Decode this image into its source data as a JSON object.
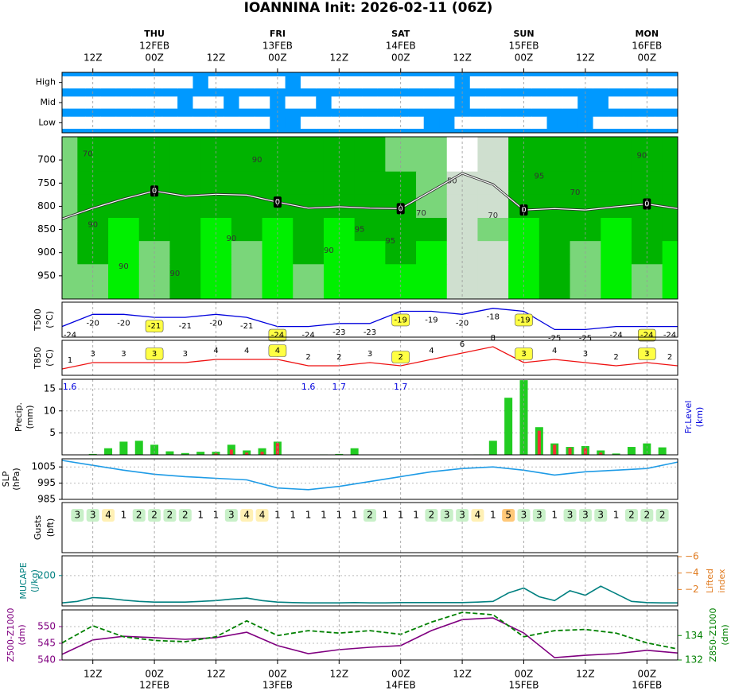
{
  "title": "IOANNINA Init: 2026-02-11 (06Z)",
  "xlim": [
    0,
    120
  ],
  "xticks": [
    {
      "value": 6,
      "label": "12Z"
    },
    {
      "value": 18,
      "label": "00Z",
      "day": "THU",
      "date": "12FEB"
    },
    {
      "value": 30,
      "label": "12Z"
    },
    {
      "value": 42,
      "label": "00Z",
      "day": "FRI",
      "date": "13FEB"
    },
    {
      "value": 54,
      "label": "12Z"
    },
    {
      "value": 66,
      "label": "00Z",
      "day": "SAT",
      "date": "14FEB"
    },
    {
      "value": 78,
      "label": "12Z"
    },
    {
      "value": 90,
      "label": "00Z",
      "day": "SUN",
      "date": "15FEB"
    },
    {
      "value": 102,
      "label": "12Z"
    },
    {
      "value": 114,
      "label": "00Z",
      "day": "MON",
      "date": "16FEB"
    }
  ],
  "chart_data": [
    {
      "type": "cloud",
      "categories": [
        "High",
        "Mid",
        "Low"
      ],
      "color": "#0099ff",
      "cloud_color": "#ffffff",
      "x": [
        0,
        3,
        6,
        9,
        12,
        15,
        18,
        21,
        24,
        27,
        30,
        33,
        36,
        39,
        42,
        45,
        48,
        51,
        54,
        57,
        60,
        63,
        66,
        69,
        72,
        75,
        78,
        81,
        84,
        87,
        90,
        93,
        96,
        99,
        102,
        105,
        108,
        111,
        114,
        117,
        120
      ],
      "cover": [
        [
          1,
          1,
          1,
          1,
          1,
          1,
          1,
          1,
          1,
          0,
          1,
          1,
          1,
          1,
          1,
          0,
          1,
          1,
          1,
          1,
          1,
          1,
          1,
          1,
          1,
          1,
          0,
          1,
          1,
          1,
          1,
          1,
          1,
          1,
          1,
          1,
          1,
          1,
          1,
          1,
          1
        ],
        [
          1,
          1,
          1,
          1,
          1,
          1,
          1,
          1,
          0,
          1,
          1,
          0,
          1,
          1,
          0,
          1,
          1,
          0,
          1,
          1,
          1,
          1,
          1,
          1,
          1,
          1,
          0,
          1,
          1,
          1,
          1,
          1,
          1,
          1,
          0,
          0,
          1,
          1,
          1,
          1,
          1
        ],
        [
          1,
          1,
          1,
          1,
          1,
          1,
          1,
          1,
          1,
          1,
          1,
          1,
          1,
          1,
          0,
          0,
          1,
          1,
          1,
          1,
          1,
          1,
          1,
          1,
          0,
          0,
          1,
          1,
          1,
          1,
          1,
          1,
          0,
          0,
          0,
          1,
          1,
          1,
          1,
          1,
          1
        ]
      ]
    },
    {
      "type": "cross_section",
      "ylim": [
        1000,
        650
      ],
      "yticks": [
        700,
        750,
        800,
        850,
        900,
        950
      ],
      "levels": [
        700,
        750,
        800,
        850,
        900,
        950
      ],
      "x": [
        0,
        6,
        12,
        18,
        24,
        30,
        36,
        42,
        48,
        54,
        60,
        66,
        72,
        78,
        84,
        90,
        96,
        102,
        108,
        114,
        120
      ],
      "rh": [
        [
          80,
          92,
          92,
          93,
          92,
          92,
          92,
          92,
          93,
          92,
          92,
          88,
          70,
          45,
          60,
          92,
          92,
          93,
          92,
          92,
          92
        ],
        [
          80,
          92,
          93,
          93,
          92,
          93,
          92,
          93,
          93,
          92,
          92,
          90,
          75,
          55,
          60,
          93,
          92,
          92,
          92,
          93,
          92
        ],
        [
          85,
          92,
          93,
          94,
          92,
          92,
          93,
          94,
          93,
          92,
          94,
          92,
          80,
          60,
          65,
          94,
          93,
          92,
          93,
          94,
          93
        ],
        [
          88,
          92,
          96,
          94,
          93,
          96,
          94,
          96,
          93,
          96,
          93,
          94,
          90,
          65,
          70,
          96,
          94,
          93,
          96,
          92,
          93
        ],
        [
          88,
          90,
          96,
          85,
          92,
          96,
          85,
          97,
          93,
          96,
          97,
          93,
          96,
          60,
          65,
          96,
          92,
          85,
          96,
          90,
          96
        ],
        [
          88,
          85,
          96,
          85,
          90,
          97,
          85,
          96,
          85,
          96,
          97,
          96,
          96,
          60,
          65,
          96,
          90,
          85,
          97,
          88,
          96
        ]
      ],
      "rh_bounds": [
        50,
        70,
        90,
        95
      ],
      "rh_colors": [
        "#ffffff",
        "#cfdfcf",
        "#7ad67a",
        "#00b300",
        "#00f000"
      ],
      "freezing_level": {
        "values": [
          827,
          804,
          784,
          767,
          778,
          774,
          776,
          791,
          804,
          801,
          804,
          805,
          767,
          729,
          753,
          808,
          805,
          808,
          801,
          795,
          805
        ],
        "label": "0",
        "color": "#ffffff"
      },
      "contour_labels": [
        {
          "x": 5,
          "p": 687,
          "value": 70
        },
        {
          "x": 6,
          "p": 840,
          "value": 90
        },
        {
          "x": 12,
          "p": 930,
          "value": 90
        },
        {
          "x": 22,
          "p": 945,
          "value": 90
        },
        {
          "x": 33,
          "p": 870,
          "value": 90
        },
        {
          "x": 38,
          "p": 700,
          "value": 90
        },
        {
          "x": 52,
          "p": 895,
          "value": 90
        },
        {
          "x": 58,
          "p": 850,
          "value": 95
        },
        {
          "x": 64,
          "p": 875,
          "value": 95
        },
        {
          "x": 70,
          "p": 815,
          "value": 70
        },
        {
          "x": 76,
          "p": 745,
          "value": 50
        },
        {
          "x": 84,
          "p": 820,
          "value": 70
        },
        {
          "x": 93,
          "p": 735,
          "value": 95
        },
        {
          "x": 100,
          "p": 770,
          "value": 70
        },
        {
          "x": 113,
          "p": 690,
          "value": 90
        }
      ]
    },
    {
      "type": "labeled_line",
      "ylabel": [
        "T500",
        "(°C)"
      ],
      "ylim": [
        -27.5,
        -16
      ],
      "color": "#0000dd",
      "box_color": "#ffff44",
      "x": [
        0,
        6,
        12,
        18,
        24,
        30,
        36,
        42,
        48,
        54,
        60,
        66,
        72,
        78,
        84,
        90,
        96,
        102,
        108,
        114,
        120
      ],
      "values": [
        -24,
        -20,
        -20,
        -21,
        -21,
        -20,
        -21,
        -24,
        -24,
        -23,
        -23,
        -19,
        -19,
        -20,
        -18,
        -19,
        -25,
        -25,
        -24,
        -24,
        -24
      ]
    },
    {
      "type": "labeled_line",
      "ylabel": [
        "T850",
        "(°C)"
      ],
      "ylim": [
        -1,
        10
      ],
      "color": "#ee1111",
      "box_color": "#ffff44",
      "x": [
        0,
        6,
        12,
        18,
        24,
        30,
        36,
        42,
        48,
        54,
        60,
        66,
        72,
        78,
        84,
        90,
        96,
        102,
        108,
        114,
        120
      ],
      "values": [
        1,
        3,
        3,
        3,
        3,
        4,
        4,
        4,
        2,
        2,
        3,
        2,
        4,
        6,
        8,
        3,
        4,
        3,
        2,
        3,
        2
      ]
    },
    {
      "type": "bar",
      "ylabel": [
        "Precip.",
        "(mm)"
      ],
      "y2label": [
        "Fr.Level",
        "(km)"
      ],
      "ylim": [
        0,
        17.2
      ],
      "yticks": [
        5,
        10,
        15
      ],
      "grid": true,
      "x": [
        3,
        6,
        9,
        12,
        15,
        18,
        21,
        24,
        27,
        30,
        33,
        36,
        39,
        42,
        45,
        48,
        51,
        54,
        57,
        60,
        63,
        66,
        69,
        72,
        75,
        78,
        81,
        84,
        87,
        90,
        93,
        96,
        99,
        102,
        105,
        108,
        111,
        114,
        117
      ],
      "series": [
        {
          "color": "#22cc22",
          "values": [
            0,
            0.2,
            1.5,
            3,
            3.2,
            2.3,
            0.8,
            0.4,
            0.7,
            0.7,
            2.3,
            1,
            1.5,
            3,
            0,
            0,
            0.1,
            0.2,
            1.5,
            0,
            0,
            0,
            0,
            0,
            0,
            0.1,
            0.1,
            3.2,
            13,
            17,
            6.3,
            2.6,
            1.8,
            2,
            1,
            0.3,
            1.8,
            2.6,
            1.7
          ]
        },
        {
          "color": "#ee3333",
          "values": [
            0,
            0,
            0,
            0,
            0,
            0,
            0,
            0,
            0,
            0.3,
            1.2,
            0.5,
            0.7,
            2.7,
            0,
            0,
            0,
            0,
            0,
            0,
            0,
            0,
            0,
            0,
            0,
            0,
            0,
            0,
            0,
            0,
            5.5,
            2.3,
            1.6,
            1.5,
            0.5,
            0,
            0,
            0,
            0
          ]
        }
      ],
      "freezing_level_km": {
        "x": [
          1.5,
          48,
          54,
          66
        ],
        "values": [
          1.6,
          1.6,
          1.7,
          1.7
        ],
        "color": "#0000dd"
      }
    },
    {
      "type": "line",
      "ylabel": [
        "SLP",
        "(hPa)"
      ],
      "ylim": [
        985,
        1010
      ],
      "yticks": [
        985,
        995,
        1005
      ],
      "grid": true,
      "x": [
        0,
        6,
        12,
        18,
        24,
        30,
        36,
        42,
        48,
        54,
        60,
        66,
        72,
        78,
        84,
        90,
        96,
        102,
        108,
        114,
        120
      ],
      "series": [
        {
          "color": "#1e9be6",
          "values": [
            1009,
            1006,
            1003,
            1000.5,
            999,
            998,
            997,
            992,
            991,
            993,
            996,
            999,
            1002,
            1004,
            1005,
            1003,
            1000,
            1002,
            1003,
            1004,
            1008
          ]
        }
      ]
    },
    {
      "type": "gust",
      "ylabel": [
        "Gusts",
        "(bft)"
      ],
      "x": [
        3,
        6,
        9,
        12,
        15,
        18,
        21,
        24,
        27,
        30,
        33,
        36,
        39,
        42,
        45,
        48,
        51,
        54,
        57,
        60,
        63,
        66,
        69,
        72,
        75,
        78,
        81,
        84,
        87,
        90,
        93,
        96,
        99,
        102,
        105,
        108,
        111,
        114,
        117
      ],
      "values": [
        3,
        3,
        4,
        1,
        2,
        2,
        2,
        2,
        1,
        1,
        3,
        4,
        4,
        1,
        1,
        1,
        1,
        1,
        1,
        2,
        1,
        1,
        1,
        2,
        3,
        3,
        4,
        1,
        5,
        3,
        3,
        1,
        3,
        3,
        3,
        1,
        2,
        2,
        2
      ],
      "box_colors": [
        "#ffffff",
        "#ffffff",
        "#c8f0c8",
        "#c8f0c8",
        "#fff0b4",
        "#ffc878"
      ]
    },
    {
      "type": "line",
      "ylabel": [
        "MUCAPE",
        "(J/kg)"
      ],
      "y2label": [
        "Lifted",
        "index"
      ],
      "ylim": [
        0,
        330
      ],
      "yticks": [
        200
      ],
      "y2lim": [
        0,
        -6.1
      ],
      "y2ticks": [
        {
          "value": -6,
          "label": "−6"
        },
        {
          "value": -4,
          "label": "−4"
        },
        {
          "value": -2,
          "label": "−2"
        }
      ],
      "y2color": "#e07b20",
      "grid": true,
      "x": [
        0,
        3,
        6,
        9,
        12,
        15,
        18,
        21,
        24,
        27,
        30,
        33,
        36,
        39,
        42,
        45,
        48,
        51,
        54,
        57,
        60,
        63,
        66,
        69,
        72,
        75,
        78,
        81,
        84,
        87,
        90,
        93,
        96,
        99,
        102,
        105,
        108,
        111,
        114,
        117,
        120
      ],
      "series": [
        {
          "color": "#008080",
          "values": [
            20,
            30,
            55,
            50,
            38,
            30,
            25,
            25,
            25,
            30,
            35,
            45,
            52,
            35,
            25,
            22,
            20,
            20,
            20,
            22,
            20,
            20,
            22,
            22,
            22,
            22,
            22,
            25,
            30,
            85,
            118,
            60,
            35,
            100,
            70,
            130,
            80,
            30,
            22,
            20,
            20
          ]
        }
      ]
    },
    {
      "type": "line",
      "ylabel": [
        "Z500-Z1000",
        "(dm)"
      ],
      "y2label": [
        "Z850-Z1000",
        "(dm)"
      ],
      "ylim": [
        540,
        555
      ],
      "yticks": [
        540,
        545,
        550
      ],
      "y2lim": [
        132,
        136.1
      ],
      "y2ticks": [
        132,
        134
      ],
      "grid": true,
      "x": [
        0,
        6,
        12,
        18,
        24,
        30,
        36,
        42,
        48,
        54,
        60,
        66,
        72,
        78,
        84,
        90,
        96,
        102,
        108,
        114,
        120
      ],
      "series": [
        {
          "color": "#800080",
          "values": [
            541.7,
            546,
            547.1,
            546.7,
            546.2,
            546.7,
            548.3,
            544.3,
            541.9,
            543.1,
            543.8,
            544.3,
            548.8,
            552.1,
            552.6,
            548.1,
            540.7,
            541.4,
            541.9,
            542.9,
            542.1
          ]
        },
        {
          "color": "#008000",
          "axis": "y2",
          "dash": true,
          "values": [
            133.4,
            134.8,
            133.9,
            133.6,
            133.5,
            133.9,
            135.2,
            134,
            134.4,
            134.2,
            134.4,
            134.1,
            135.1,
            135.9,
            135.7,
            133.9,
            134.4,
            134.5,
            134.2,
            133.4,
            132.9
          ]
        }
      ]
    }
  ]
}
